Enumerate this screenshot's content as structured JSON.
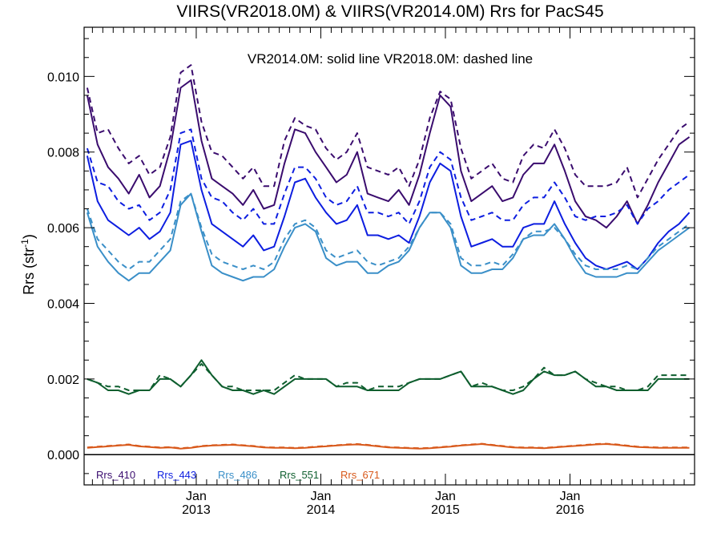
{
  "chart_data": {
    "type": "line",
    "title": "VIIRS(VR2018.0M) & VIIRS(VR2014.0M)  Rrs for PacS45",
    "annotation": "VR2014.0M: solid line   VR2018.0M: dashed line",
    "ylabel_main": "Rrs (str",
    "ylabel_sup": "-1",
    "ylabel_tail": ")",
    "xlabel": "",
    "ylim": [
      -0.0008,
      0.0113
    ],
    "xlim": [
      2012.1,
      2017.0
    ],
    "grid": false,
    "y_ticks": [
      {
        "value": 0.0,
        "label": "0.000"
      },
      {
        "value": 0.002,
        "label": "0.002"
      },
      {
        "value": 0.004,
        "label": "0.004"
      },
      {
        "value": 0.006,
        "label": "0.006"
      },
      {
        "value": 0.008,
        "label": "0.008"
      },
      {
        "value": 0.01,
        "label": "0.010"
      }
    ],
    "x_ticks": [
      {
        "value": 2013.0,
        "month": "Jan",
        "year": "2013"
      },
      {
        "value": 2014.0,
        "month": "Jan",
        "year": "2014"
      },
      {
        "value": 2015.0,
        "month": "Jan",
        "year": "2015"
      },
      {
        "value": 2016.0,
        "month": "Jan",
        "year": "2016"
      }
    ],
    "legend_position": "bottom-left",
    "x": [
      2012.125,
      2012.208,
      2012.292,
      2012.375,
      2012.458,
      2012.542,
      2012.625,
      2012.708,
      2012.792,
      2012.875,
      2012.958,
      2013.042,
      2013.125,
      2013.208,
      2013.292,
      2013.375,
      2013.458,
      2013.542,
      2013.625,
      2013.708,
      2013.792,
      2013.875,
      2013.958,
      2014.042,
      2014.125,
      2014.208,
      2014.292,
      2014.375,
      2014.458,
      2014.542,
      2014.625,
      2014.708,
      2014.792,
      2014.875,
      2014.958,
      2015.042,
      2015.125,
      2015.208,
      2015.292,
      2015.375,
      2015.458,
      2015.542,
      2015.625,
      2015.708,
      2015.792,
      2015.875,
      2015.958,
      2016.042,
      2016.125,
      2016.208,
      2016.292,
      2016.375,
      2016.458,
      2016.542,
      2016.625,
      2016.708,
      2016.792,
      2016.875,
      2016.958
    ],
    "series": [
      {
        "name": "Rrs_410",
        "color": "#3a0c6e",
        "style": "solid",
        "values": [
          0.0095,
          0.0082,
          0.0076,
          0.0073,
          0.0069,
          0.0074,
          0.0068,
          0.0071,
          0.0081,
          0.0097,
          0.0099,
          0.0083,
          0.0073,
          0.0071,
          0.0069,
          0.0066,
          0.007,
          0.0065,
          0.0066,
          0.0077,
          0.0086,
          0.0085,
          0.008,
          0.0076,
          0.0072,
          0.0074,
          0.008,
          0.0069,
          0.0068,
          0.0067,
          0.007,
          0.0066,
          0.0074,
          0.0085,
          0.0095,
          0.0092,
          0.0075,
          0.0067,
          0.0069,
          0.0071,
          0.0067,
          0.0068,
          0.0074,
          0.0077,
          0.0077,
          0.0082,
          0.0075,
          0.0067,
          0.0063,
          0.0062,
          0.006,
          0.0063,
          0.0067,
          0.0061,
          0.0066,
          0.0072,
          0.0077,
          0.0082,
          0.0084
        ]
      },
      {
        "name": "Rrs_410 (VR2018.0M)",
        "color": "#3a0c6e",
        "style": "dashed",
        "values": [
          0.0097,
          0.0085,
          0.0086,
          0.0081,
          0.0077,
          0.0079,
          0.0074,
          0.0076,
          0.0084,
          0.0101,
          0.0103,
          0.0088,
          0.008,
          0.0079,
          0.0076,
          0.0073,
          0.0076,
          0.0071,
          0.0071,
          0.0083,
          0.0089,
          0.0087,
          0.0086,
          0.0081,
          0.0078,
          0.008,
          0.0085,
          0.0076,
          0.0075,
          0.0074,
          0.0076,
          0.0071,
          0.0078,
          0.0089,
          0.0096,
          0.0094,
          0.0081,
          0.0073,
          0.0075,
          0.0077,
          0.0073,
          0.0072,
          0.0079,
          0.0082,
          0.0081,
          0.0086,
          0.0081,
          0.0074,
          0.0071,
          0.0071,
          0.0071,
          0.0072,
          0.0076,
          0.0068,
          0.0073,
          0.0078,
          0.0082,
          0.0086,
          0.0088
        ]
      },
      {
        "name": "Rrs_443",
        "color": "#0d1ee0",
        "style": "solid",
        "values": [
          0.0079,
          0.0067,
          0.0062,
          0.006,
          0.0058,
          0.006,
          0.0057,
          0.0059,
          0.0064,
          0.0082,
          0.0083,
          0.007,
          0.0061,
          0.0059,
          0.0057,
          0.0055,
          0.0058,
          0.0054,
          0.0055,
          0.0063,
          0.0072,
          0.0073,
          0.0068,
          0.0064,
          0.0061,
          0.0062,
          0.0066,
          0.0058,
          0.0058,
          0.0057,
          0.0058,
          0.0056,
          0.0063,
          0.0072,
          0.0077,
          0.0075,
          0.0063,
          0.0055,
          0.0056,
          0.0057,
          0.0055,
          0.0055,
          0.006,
          0.0061,
          0.0061,
          0.0067,
          0.0061,
          0.0056,
          0.0052,
          0.005,
          0.0049,
          0.005,
          0.0051,
          0.0049,
          0.0052,
          0.0056,
          0.0059,
          0.0061,
          0.0064
        ]
      },
      {
        "name": "Rrs_443 (VR2018.0M)",
        "color": "#0d1ee0",
        "style": "dashed",
        "values": [
          0.0081,
          0.0072,
          0.0071,
          0.0067,
          0.0065,
          0.0066,
          0.0062,
          0.0064,
          0.007,
          0.0085,
          0.0086,
          0.0073,
          0.0068,
          0.0067,
          0.0064,
          0.0062,
          0.0065,
          0.0061,
          0.0061,
          0.0069,
          0.0076,
          0.0076,
          0.0073,
          0.0068,
          0.0066,
          0.0067,
          0.0071,
          0.0064,
          0.0064,
          0.0063,
          0.0064,
          0.0061,
          0.0067,
          0.0076,
          0.008,
          0.0078,
          0.0068,
          0.0062,
          0.0063,
          0.0064,
          0.0062,
          0.0062,
          0.0066,
          0.0068,
          0.0068,
          0.0072,
          0.0068,
          0.0063,
          0.0062,
          0.0063,
          0.0063,
          0.0064,
          0.0066,
          0.0061,
          0.0065,
          0.0067,
          0.007,
          0.0072,
          0.0074
        ]
      },
      {
        "name": "Rrs_486",
        "color": "#3a8fc8",
        "style": "solid",
        "values": [
          0.0064,
          0.0055,
          0.0051,
          0.0048,
          0.0046,
          0.0048,
          0.0048,
          0.0051,
          0.0054,
          0.0066,
          0.0069,
          0.0059,
          0.005,
          0.0048,
          0.0047,
          0.0046,
          0.0047,
          0.0047,
          0.0049,
          0.0055,
          0.006,
          0.0061,
          0.0059,
          0.0052,
          0.005,
          0.0051,
          0.0051,
          0.0048,
          0.0048,
          0.005,
          0.0051,
          0.0054,
          0.006,
          0.0064,
          0.0064,
          0.006,
          0.005,
          0.0048,
          0.0048,
          0.0049,
          0.0049,
          0.0052,
          0.0057,
          0.0058,
          0.0058,
          0.0061,
          0.0057,
          0.0052,
          0.0048,
          0.0047,
          0.0047,
          0.0047,
          0.0048,
          0.0048,
          0.0051,
          0.0054,
          0.0056,
          0.0058,
          0.006
        ]
      },
      {
        "name": "Rrs_486 (VR2018.0M)",
        "color": "#3a8fc8",
        "style": "dashed",
        "values": [
          0.0065,
          0.0057,
          0.0054,
          0.0051,
          0.0049,
          0.0051,
          0.0051,
          0.0054,
          0.0057,
          0.0067,
          0.0069,
          0.006,
          0.0053,
          0.0051,
          0.005,
          0.0049,
          0.005,
          0.0049,
          0.0051,
          0.0057,
          0.0061,
          0.0062,
          0.006,
          0.0054,
          0.0052,
          0.0053,
          0.0054,
          0.0051,
          0.005,
          0.0051,
          0.0052,
          0.0055,
          0.006,
          0.0064,
          0.0064,
          0.0061,
          0.0052,
          0.005,
          0.005,
          0.0051,
          0.005,
          0.0053,
          0.0057,
          0.0059,
          0.0059,
          0.006,
          0.0057,
          0.0053,
          0.005,
          0.0049,
          0.0049,
          0.0049,
          0.005,
          0.0049,
          0.0052,
          0.0055,
          0.0057,
          0.0059,
          0.0061
        ]
      },
      {
        "name": "Rrs_551",
        "color": "#0e5e2e",
        "style": "solid",
        "values": [
          0.002,
          0.0019,
          0.0017,
          0.0017,
          0.0016,
          0.0017,
          0.0017,
          0.002,
          0.002,
          0.0018,
          0.0021,
          0.0025,
          0.0021,
          0.0018,
          0.0017,
          0.0017,
          0.0016,
          0.0017,
          0.0016,
          0.0018,
          0.002,
          0.002,
          0.002,
          0.002,
          0.0018,
          0.0018,
          0.0018,
          0.0017,
          0.0017,
          0.0017,
          0.0017,
          0.0019,
          0.002,
          0.002,
          0.002,
          0.0021,
          0.0022,
          0.0018,
          0.0018,
          0.0018,
          0.0017,
          0.0016,
          0.0017,
          0.002,
          0.0022,
          0.0021,
          0.0021,
          0.0022,
          0.002,
          0.0018,
          0.0018,
          0.0017,
          0.0017,
          0.0017,
          0.0017,
          0.002,
          0.002,
          0.002,
          0.002
        ]
      },
      {
        "name": "Rrs_551 (VR2018.0M)",
        "color": "#0e5e2e",
        "style": "dashed",
        "values": [
          0.002,
          0.0019,
          0.0018,
          0.0018,
          0.0017,
          0.0017,
          0.0017,
          0.0021,
          0.002,
          0.0018,
          0.0021,
          0.0024,
          0.0021,
          0.0018,
          0.0018,
          0.0017,
          0.0017,
          0.0017,
          0.0017,
          0.0019,
          0.0021,
          0.002,
          0.002,
          0.002,
          0.0018,
          0.0019,
          0.0019,
          0.0017,
          0.0018,
          0.0018,
          0.0018,
          0.0019,
          0.002,
          0.002,
          0.002,
          0.0021,
          0.0022,
          0.0018,
          0.0019,
          0.0018,
          0.0017,
          0.0017,
          0.0018,
          0.002,
          0.0023,
          0.0021,
          0.0021,
          0.0022,
          0.002,
          0.0019,
          0.0018,
          0.0018,
          0.0017,
          0.0017,
          0.0018,
          0.0021,
          0.0021,
          0.0021,
          0.0021
        ]
      },
      {
        "name": "Rrs_671",
        "color": "#d8581a",
        "style": "solid",
        "values": [
          0.00018,
          0.0002,
          0.00022,
          0.00024,
          0.00026,
          0.00022,
          0.0002,
          0.00018,
          0.00019,
          0.00016,
          0.00018,
          0.00022,
          0.00024,
          0.00025,
          0.00026,
          0.00024,
          0.00022,
          0.00019,
          0.00018,
          0.00018,
          0.00017,
          0.00018,
          0.0002,
          0.00022,
          0.00024,
          0.00026,
          0.00027,
          0.00025,
          0.00022,
          0.00019,
          0.00018,
          0.00017,
          0.00016,
          0.00017,
          0.00019,
          0.00021,
          0.00024,
          0.00026,
          0.00028,
          0.00025,
          0.00022,
          0.00019,
          0.00018,
          0.00018,
          0.00017,
          0.00019,
          0.00021,
          0.00023,
          0.00025,
          0.00027,
          0.00028,
          0.00026,
          0.00023,
          0.0002,
          0.00019,
          0.00018,
          0.00018,
          0.00018,
          0.00018
        ]
      },
      {
        "name": "Rrs_671 (VR2018.0M)",
        "color": "#d8581a",
        "style": "dashed",
        "values": [
          0.00019,
          0.00021,
          0.00023,
          0.00025,
          0.00027,
          0.00023,
          0.00021,
          0.00019,
          0.0002,
          0.00017,
          0.00019,
          0.00023,
          0.00025,
          0.00026,
          0.00027,
          0.00025,
          0.00023,
          0.0002,
          0.00019,
          0.00019,
          0.00018,
          0.00019,
          0.00021,
          0.00023,
          0.00025,
          0.00027,
          0.00028,
          0.00026,
          0.00023,
          0.0002,
          0.00019,
          0.00018,
          0.00017,
          0.00018,
          0.0002,
          0.00022,
          0.00025,
          0.00027,
          0.00029,
          0.00026,
          0.00023,
          0.0002,
          0.00019,
          0.00019,
          0.00018,
          0.0002,
          0.00022,
          0.00024,
          0.00026,
          0.00028,
          0.00029,
          0.00027,
          0.00024,
          0.00021,
          0.0002,
          0.00019,
          0.00019,
          0.00019,
          0.00019
        ]
      }
    ],
    "legend": [
      {
        "label": "Rrs_410",
        "color": "#3a0c6e"
      },
      {
        "label": "Rrs_443",
        "color": "#0d1ee0"
      },
      {
        "label": "Rrs_486",
        "color": "#3a8fc8"
      },
      {
        "label": "Rrs_551",
        "color": "#0e5e2e"
      },
      {
        "label": "Rrs_671",
        "color": "#d8581a"
      }
    ]
  }
}
